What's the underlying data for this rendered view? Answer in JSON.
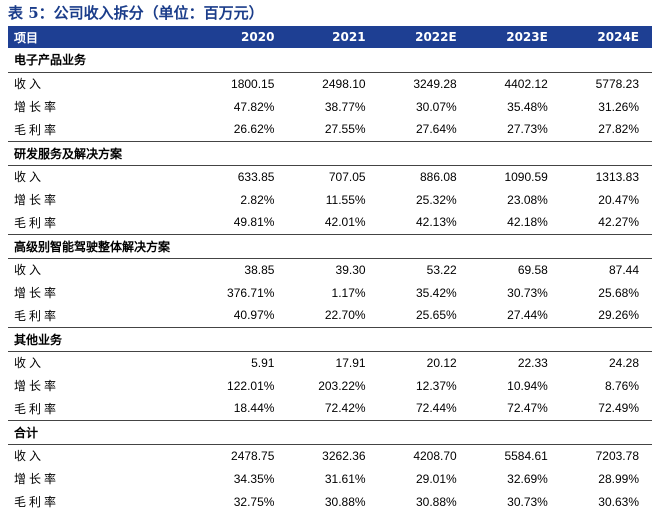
{
  "table_title": "表 5：公司收入拆分（单位：百万元）",
  "header": {
    "item_label": "项目",
    "years": [
      "2020",
      "2021",
      "2022E",
      "2023E",
      "2024E"
    ]
  },
  "sections": [
    {
      "name": "电子产品业务",
      "rows": [
        {
          "label": "收入",
          "values": [
            "1800.15",
            "2498.10",
            "3249.28",
            "4402.12",
            "5778.23"
          ]
        },
        {
          "label": "增长率",
          "values": [
            "47.82%",
            "38.77%",
            "30.07%",
            "35.48%",
            "31.26%"
          ]
        },
        {
          "label": "毛利率",
          "values": [
            "26.62%",
            "27.55%",
            "27.64%",
            "27.73%",
            "27.82%"
          ]
        }
      ]
    },
    {
      "name": "研发服务及解决方案",
      "rows": [
        {
          "label": "收入",
          "values": [
            "633.85",
            "707.05",
            "886.08",
            "1090.59",
            "1313.83"
          ]
        },
        {
          "label": "增长率",
          "values": [
            "2.82%",
            "11.55%",
            "25.32%",
            "23.08%",
            "20.47%"
          ]
        },
        {
          "label": "毛利率",
          "values": [
            "49.81%",
            "42.01%",
            "42.13%",
            "42.18%",
            "42.27%"
          ]
        }
      ]
    },
    {
      "name": "高级别智能驾驶整体解决方案",
      "rows": [
        {
          "label": "收入",
          "values": [
            "38.85",
            "39.30",
            "53.22",
            "69.58",
            "87.44"
          ]
        },
        {
          "label": "增长率",
          "values": [
            "376.71%",
            "1.17%",
            "35.42%",
            "30.73%",
            "25.68%"
          ]
        },
        {
          "label": "毛利率",
          "values": [
            "40.97%",
            "22.70%",
            "25.65%",
            "27.44%",
            "29.26%"
          ]
        }
      ]
    },
    {
      "name": "其他业务",
      "rows": [
        {
          "label": "收入",
          "values": [
            "5.91",
            "17.91",
            "20.12",
            "22.33",
            "24.28"
          ]
        },
        {
          "label": "增长率",
          "values": [
            "122.01%",
            "203.22%",
            "12.37%",
            "10.94%",
            "8.76%"
          ]
        },
        {
          "label": "毛利率",
          "values": [
            "18.44%",
            "72.42%",
            "72.44%",
            "72.47%",
            "72.49%"
          ]
        }
      ]
    },
    {
      "name": "合计",
      "rows": [
        {
          "label": "收入",
          "values": [
            "2478.75",
            "3262.36",
            "4208.70",
            "5584.61",
            "7203.78"
          ]
        },
        {
          "label": "增长率",
          "values": [
            "34.35%",
            "31.61%",
            "29.01%",
            "32.69%",
            "28.99%"
          ]
        },
        {
          "label": "毛利率",
          "values": [
            "32.75%",
            "30.88%",
            "30.88%",
            "30.73%",
            "30.63%"
          ]
        }
      ]
    }
  ]
}
